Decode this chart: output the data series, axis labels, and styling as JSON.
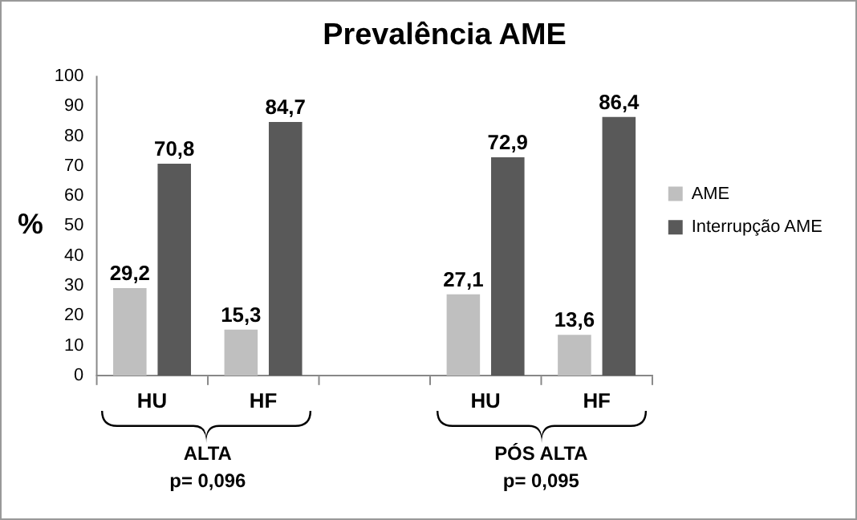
{
  "chart_data": {
    "type": "bar",
    "title": "Prevalência AME",
    "ylabel": "%",
    "categories": [
      "HU",
      "HF",
      null,
      "HU",
      "HF"
    ],
    "series": [
      {
        "name": "AME",
        "color": "#bfbfbf",
        "values": [
          29.2,
          15.3,
          null,
          27.1,
          13.6
        ],
        "value_labels": [
          "29,2",
          "15,3",
          null,
          "27,1",
          "13,6"
        ]
      },
      {
        "name": "Interrupção AME",
        "color": "#595959",
        "values": [
          70.8,
          84.7,
          null,
          72.9,
          86.4
        ],
        "value_labels": [
          "70,8",
          "84,7",
          null,
          "72,9",
          "86,4"
        ]
      }
    ],
    "ylim": [
      0,
      100
    ],
    "yticks": [
      0,
      10,
      20,
      30,
      40,
      50,
      60,
      70,
      80,
      90,
      100
    ],
    "grid": false,
    "legend": "right",
    "annotations": [
      "ALTA",
      "p= 0,096",
      "PÓS ALTA",
      "p= 0,095"
    ]
  }
}
